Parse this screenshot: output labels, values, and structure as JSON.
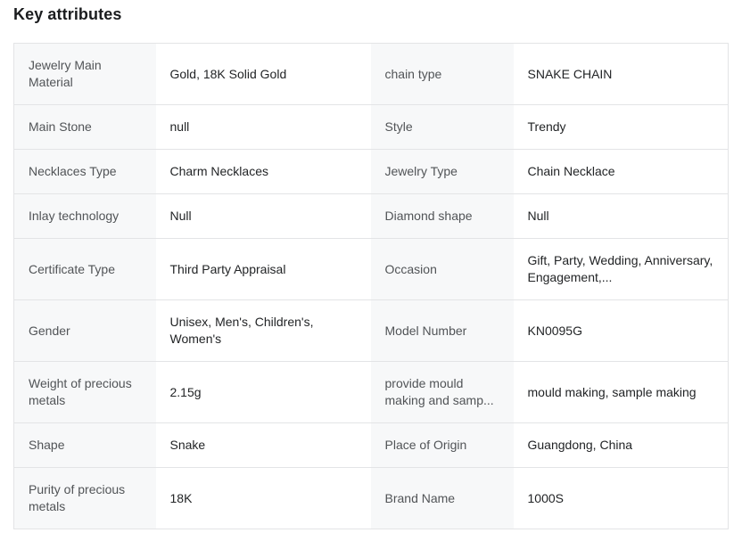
{
  "page": {
    "title": "Key attributes"
  },
  "colors": {
    "label_cell_background": "#f7f8f9",
    "table_border": "#e3e4e6",
    "label_text": "#515457",
    "value_text": "#222426",
    "title_text": "#1b1d1f"
  },
  "attributes_table": {
    "rows": [
      {
        "l1": "Jewelry Main Material",
        "v1": "Gold, 18K Solid Gold",
        "l2": "chain type",
        "v2": "SNAKE CHAIN"
      },
      {
        "l1": "Main Stone",
        "v1": "null",
        "l2": "Style",
        "v2": "Trendy"
      },
      {
        "l1": "Necklaces Type",
        "v1": "Charm Necklaces",
        "l2": "Jewelry Type",
        "v2": "Chain Necklace"
      },
      {
        "l1": "Inlay technology",
        "v1": "Null",
        "l2": "Diamond shape",
        "v2": "Null"
      },
      {
        "l1": "Certificate Type",
        "v1": "Third Party Appraisal",
        "l2": "Occasion",
        "v2": "Gift, Party, Wedding, Anniversary, Engagement,..."
      },
      {
        "l1": "Gender",
        "v1": "Unisex, Men's, Children's, Women's",
        "l2": "Model Number",
        "v2": "KN0095G"
      },
      {
        "l1": "Weight of precious metals",
        "v1": "2.15g",
        "l2": "provide mould making and samp...",
        "v2": "mould making, sample making"
      },
      {
        "l1": "Shape",
        "v1": "Snake",
        "l2": "Place of Origin",
        "v2": "Guangdong, China"
      },
      {
        "l1": "Purity of precious metals",
        "v1": "18K",
        "l2": "Brand Name",
        "v2": "1000S"
      }
    ]
  }
}
